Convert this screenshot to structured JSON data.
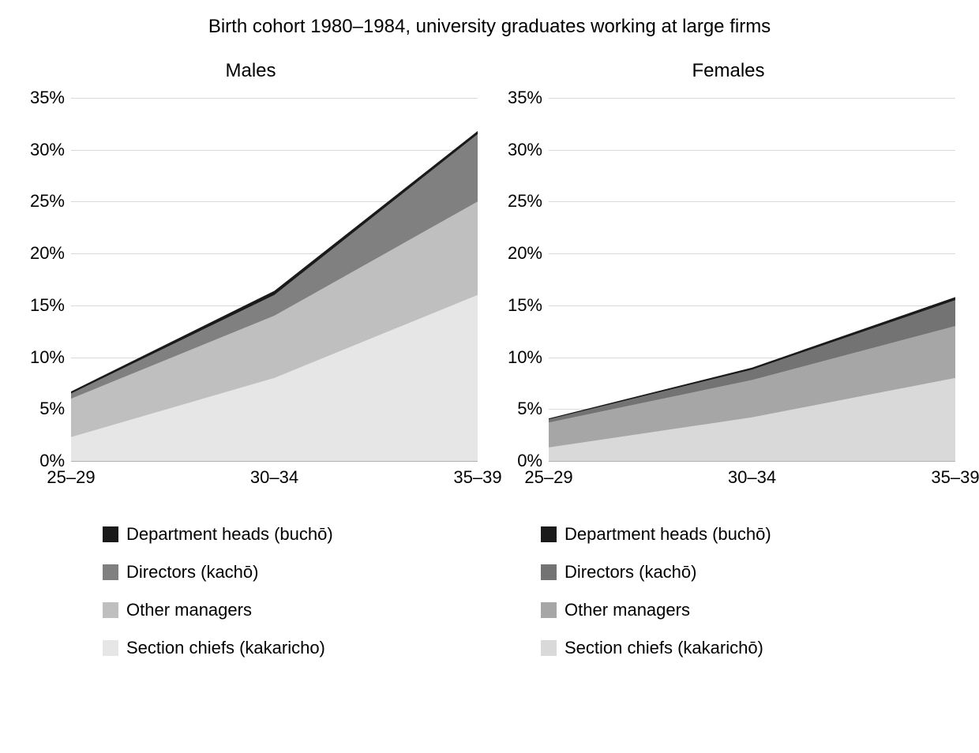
{
  "title": "Birth cohort 1980–1984, university graduates working at large firms",
  "title_fontsize": 24,
  "background_color": "#ffffff",
  "grid_color": "#d9d9d9",
  "axis_line_color": "#b0b0b0",
  "text_color": "#000000",
  "axis_fontsize": 22,
  "legend_fontsize": 22,
  "panels": [
    {
      "title": "Males",
      "type": "area-stacked",
      "x_categories": [
        "25–29",
        "30–34",
        "35–39"
      ],
      "ylim": [
        0,
        35
      ],
      "ytick_step": 5,
      "y_suffix": "%",
      "series": [
        {
          "name": "Section chiefs (kakaricho)",
          "color": "#e6e6e6",
          "values": [
            2.3,
            8.0,
            16.0
          ]
        },
        {
          "name": "Other managers",
          "color": "#bfbfbf",
          "values": [
            3.7,
            6.0,
            9.0
          ]
        },
        {
          "name": "Directors (kachō)",
          "color": "#808080",
          "values": [
            0.5,
            2.0,
            6.5
          ]
        },
        {
          "name": "Department heads (buchō)",
          "color": "#1a1a1a",
          "values": [
            0.2,
            0.4,
            0.3
          ]
        }
      ]
    },
    {
      "title": "Females",
      "type": "area-stacked",
      "x_categories": [
        "25–29",
        "30–34",
        "35–39"
      ],
      "ylim": [
        0,
        35
      ],
      "ytick_step": 5,
      "y_suffix": "%",
      "series": [
        {
          "name": "Section chiefs (kakarichō)",
          "color": "#d9d9d9",
          "values": [
            1.3,
            4.2,
            8.0
          ]
        },
        {
          "name": "Other managers",
          "color": "#a6a6a6",
          "values": [
            2.4,
            3.6,
            5.0
          ]
        },
        {
          "name": "Directors (kachō)",
          "color": "#737373",
          "values": [
            0.3,
            1.0,
            2.5
          ]
        },
        {
          "name": "Department heads (buchō)",
          "color": "#1a1a1a",
          "values": [
            0.1,
            0.2,
            0.3
          ]
        }
      ]
    }
  ],
  "legend_order": [
    "Department heads (buchō)",
    "Directors (kachō)",
    "Other managers",
    "Section chiefs"
  ]
}
